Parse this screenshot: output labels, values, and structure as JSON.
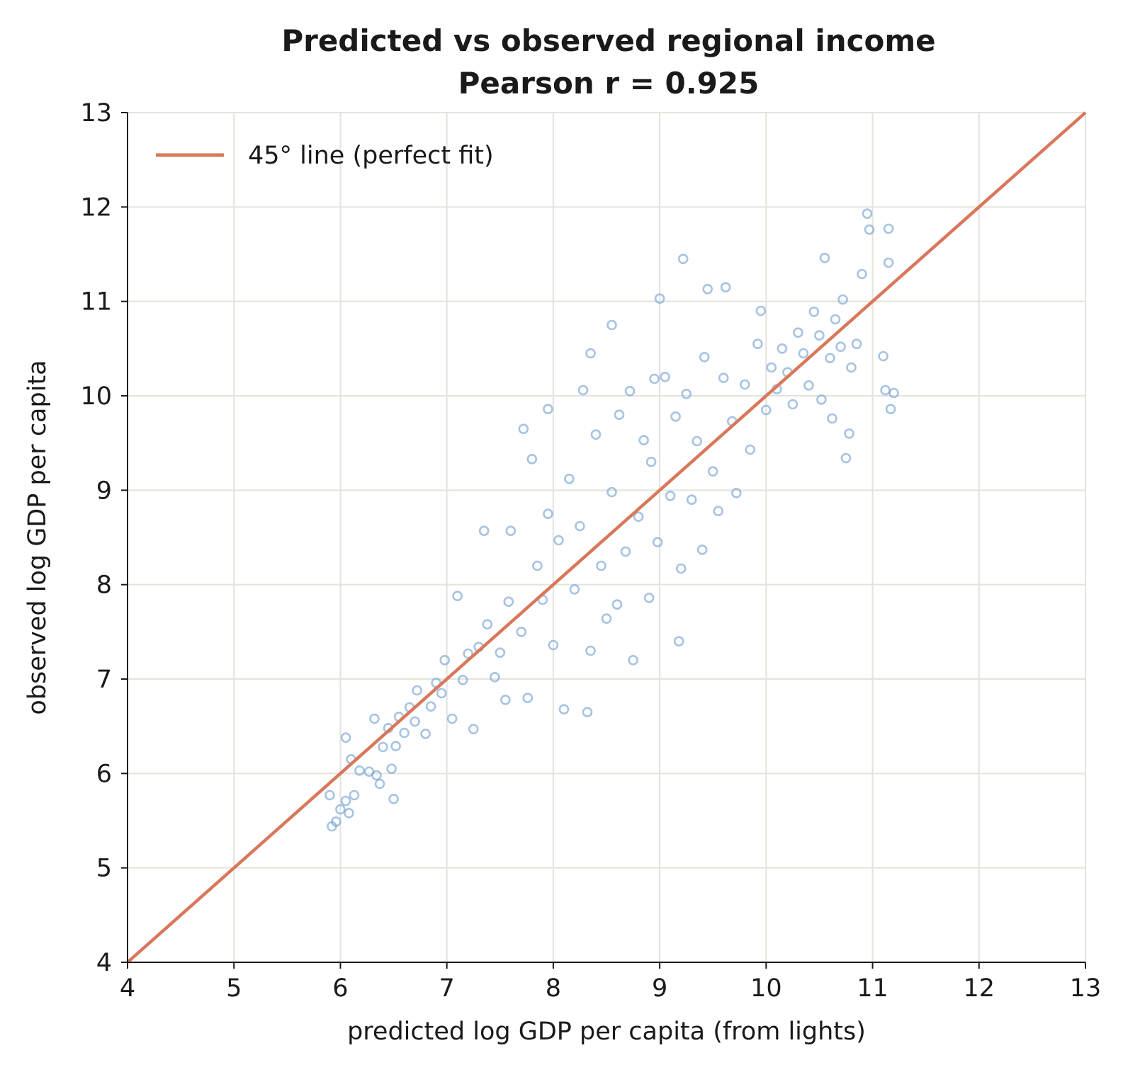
{
  "chart_data": {
    "type": "scatter",
    "title": "Predicted vs observed regional income",
    "subtitle": "Pearson r = 0.925",
    "xlabel": "predicted log GDP per capita (from lights)",
    "ylabel": "observed log GDP per capita",
    "xlim": [
      4,
      13
    ],
    "ylim": [
      4,
      13
    ],
    "xticks": [
      "4",
      "5",
      "6",
      "7",
      "8",
      "9",
      "10",
      "11",
      "12",
      "13"
    ],
    "yticks": [
      "4",
      "5",
      "6",
      "7",
      "8",
      "9",
      "10",
      "11",
      "12",
      "13"
    ],
    "grid": true,
    "legend_placement": "top-left",
    "reference_line": {
      "label": "45° line (perfect fit)",
      "points": [
        [
          4,
          4
        ],
        [
          13,
          13
        ]
      ],
      "color": "#d9775a"
    },
    "point_color": "#6b9bd1",
    "marker": "hollow-circle",
    "points": [
      [
        5.9,
        5.77
      ],
      [
        5.92,
        5.44
      ],
      [
        5.96,
        5.49
      ],
      [
        6.0,
        5.62
      ],
      [
        6.05,
        5.71
      ],
      [
        6.08,
        5.58
      ],
      [
        6.13,
        5.77
      ],
      [
        6.05,
        6.38
      ],
      [
        6.1,
        6.15
      ],
      [
        6.18,
        6.03
      ],
      [
        6.27,
        6.02
      ],
      [
        6.32,
        6.58
      ],
      [
        6.34,
        5.98
      ],
      [
        6.37,
        5.89
      ],
      [
        6.4,
        6.28
      ],
      [
        6.45,
        6.48
      ],
      [
        6.48,
        6.05
      ],
      [
        6.5,
        5.73
      ],
      [
        6.52,
        6.29
      ],
      [
        6.55,
        6.6
      ],
      [
        6.6,
        6.43
      ],
      [
        6.65,
        6.7
      ],
      [
        6.7,
        6.55
      ],
      [
        6.72,
        6.88
      ],
      [
        6.8,
        6.42
      ],
      [
        6.85,
        6.71
      ],
      [
        6.9,
        6.96
      ],
      [
        6.95,
        6.85
      ],
      [
        6.98,
        7.2
      ],
      [
        7.05,
        6.58
      ],
      [
        7.1,
        7.88
      ],
      [
        7.15,
        6.99
      ],
      [
        7.2,
        7.27
      ],
      [
        7.25,
        6.47
      ],
      [
        7.3,
        7.34
      ],
      [
        7.35,
        8.57
      ],
      [
        7.38,
        7.58
      ],
      [
        7.45,
        7.02
      ],
      [
        7.5,
        7.28
      ],
      [
        7.55,
        6.78
      ],
      [
        7.58,
        7.82
      ],
      [
        7.6,
        8.57
      ],
      [
        7.7,
        7.5
      ],
      [
        7.72,
        9.65
      ],
      [
        7.76,
        6.8
      ],
      [
        7.8,
        9.33
      ],
      [
        7.85,
        8.2
      ],
      [
        7.9,
        7.84
      ],
      [
        7.95,
        9.86
      ],
      [
        7.95,
        8.75
      ],
      [
        8.0,
        7.36
      ],
      [
        8.05,
        8.47
      ],
      [
        8.1,
        6.68
      ],
      [
        8.15,
        9.12
      ],
      [
        8.2,
        7.95
      ],
      [
        8.25,
        8.62
      ],
      [
        8.28,
        10.06
      ],
      [
        8.32,
        6.65
      ],
      [
        8.35,
        10.45
      ],
      [
        8.35,
        7.3
      ],
      [
        8.4,
        9.59
      ],
      [
        8.45,
        8.2
      ],
      [
        8.5,
        7.64
      ],
      [
        8.55,
        8.98
      ],
      [
        8.55,
        10.75
      ],
      [
        8.6,
        7.79
      ],
      [
        8.62,
        9.8
      ],
      [
        8.68,
        8.35
      ],
      [
        8.72,
        10.05
      ],
      [
        8.75,
        7.2
      ],
      [
        8.8,
        8.72
      ],
      [
        8.85,
        9.53
      ],
      [
        8.9,
        7.86
      ],
      [
        8.92,
        9.3
      ],
      [
        8.95,
        10.18
      ],
      [
        8.98,
        8.45
      ],
      [
        9.0,
        11.03
      ],
      [
        9.05,
        10.2
      ],
      [
        9.1,
        8.94
      ],
      [
        9.15,
        9.78
      ],
      [
        9.18,
        7.4
      ],
      [
        9.2,
        8.17
      ],
      [
        9.22,
        11.45
      ],
      [
        9.25,
        10.02
      ],
      [
        9.3,
        8.9
      ],
      [
        9.35,
        9.52
      ],
      [
        9.4,
        8.37
      ],
      [
        9.42,
        10.41
      ],
      [
        9.45,
        11.13
      ],
      [
        9.5,
        9.2
      ],
      [
        9.55,
        8.78
      ],
      [
        9.6,
        10.19
      ],
      [
        9.62,
        11.15
      ],
      [
        9.68,
        9.73
      ],
      [
        9.72,
        8.97
      ],
      [
        9.8,
        10.12
      ],
      [
        9.85,
        9.43
      ],
      [
        9.92,
        10.55
      ],
      [
        9.95,
        10.9
      ],
      [
        10.0,
        9.85
      ],
      [
        10.05,
        10.3
      ],
      [
        10.1,
        10.07
      ],
      [
        10.15,
        10.5
      ],
      [
        10.2,
        10.25
      ],
      [
        10.25,
        9.91
      ],
      [
        10.3,
        10.67
      ],
      [
        10.35,
        10.45
      ],
      [
        10.4,
        10.11
      ],
      [
        10.45,
        10.89
      ],
      [
        10.5,
        10.64
      ],
      [
        10.52,
        9.96
      ],
      [
        10.55,
        11.46
      ],
      [
        10.6,
        10.4
      ],
      [
        10.62,
        9.76
      ],
      [
        10.65,
        10.81
      ],
      [
        10.7,
        10.52
      ],
      [
        10.72,
        11.02
      ],
      [
        10.75,
        9.34
      ],
      [
        10.78,
        9.6
      ],
      [
        10.8,
        10.3
      ],
      [
        10.85,
        10.55
      ],
      [
        10.9,
        11.29
      ],
      [
        10.95,
        11.93
      ],
      [
        10.97,
        11.76
      ],
      [
        11.1,
        10.42
      ],
      [
        11.12,
        10.06
      ],
      [
        11.15,
        11.77
      ],
      [
        11.15,
        11.41
      ],
      [
        11.17,
        9.86
      ],
      [
        11.2,
        10.03
      ]
    ]
  }
}
